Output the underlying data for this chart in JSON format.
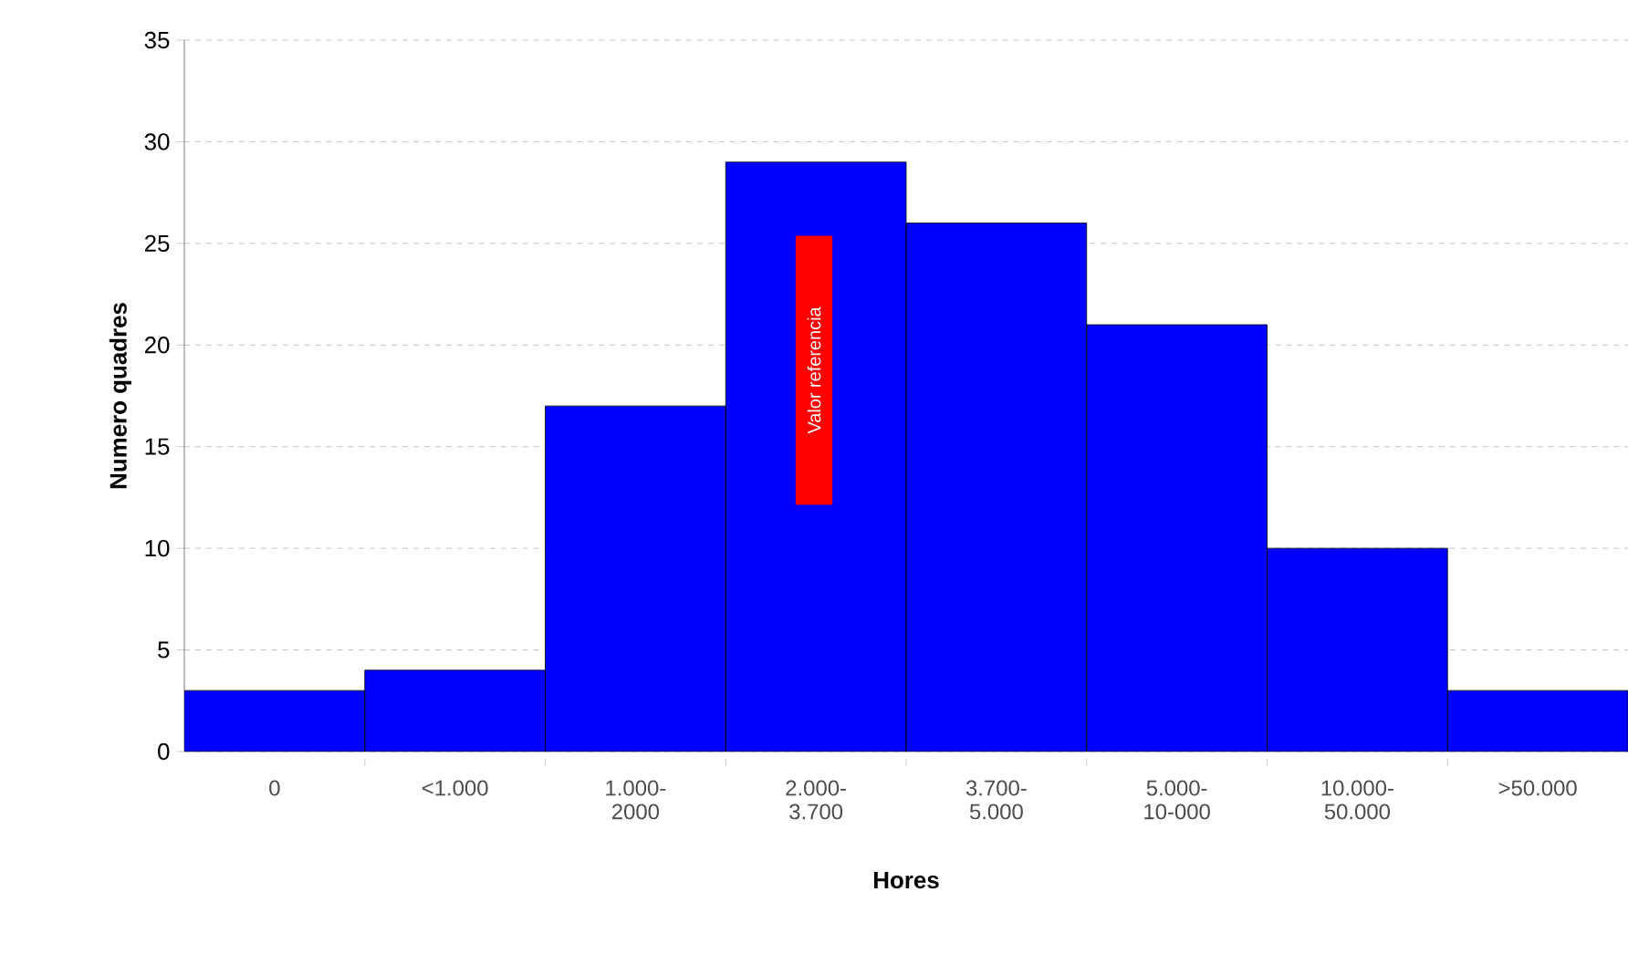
{
  "chart_data": {
    "type": "bar",
    "xlabel": "Hores",
    "ylabel": "Numero quadres",
    "categories": [
      "0",
      "<1.000",
      "1.000-2000",
      "2.000-3.700",
      "3.700-5.000",
      "5.000-10-000",
      "10.000-50.000",
      ">50.000"
    ],
    "values": [
      3,
      4,
      17,
      29,
      26,
      21,
      10,
      3
    ],
    "color": "#0000ff",
    "ylim": [
      0,
      35
    ],
    "yticks": [
      0,
      5,
      10,
      15,
      20,
      25,
      30,
      35
    ],
    "grid": "y",
    "annotations": [
      "Valor referencia"
    ]
  }
}
